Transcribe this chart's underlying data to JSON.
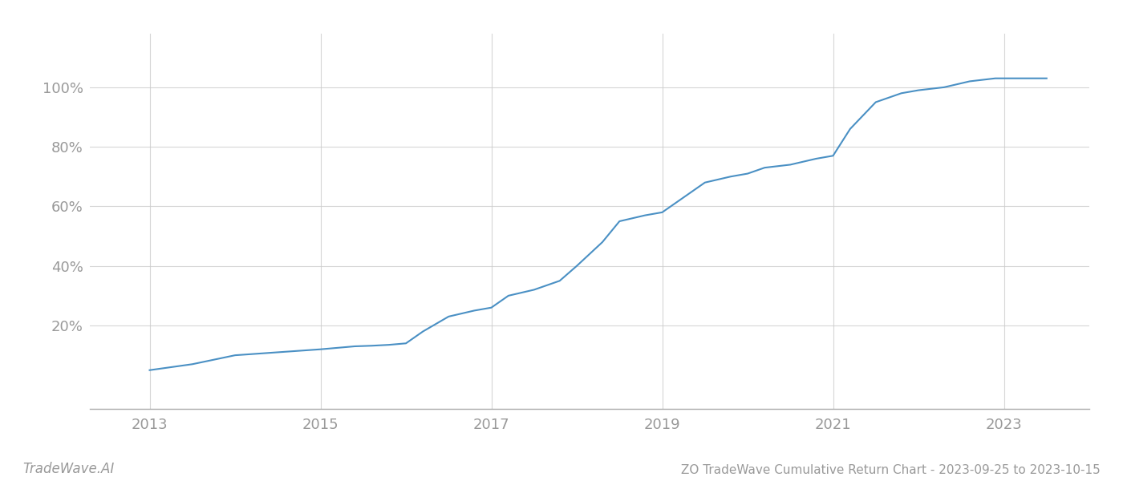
{
  "title": "ZO TradeWave Cumulative Return Chart - 2023-09-25 to 2023-10-15",
  "watermark": "TradeWave.AI",
  "line_color": "#4a90c4",
  "line_width": 1.5,
  "background_color": "#ffffff",
  "grid_color": "#cccccc",
  "x_years": [
    2013.0,
    2013.5,
    2014.0,
    2014.5,
    2015.0,
    2015.2,
    2015.4,
    2015.6,
    2015.8,
    2016.0,
    2016.2,
    2016.5,
    2016.8,
    2017.0,
    2017.2,
    2017.5,
    2017.8,
    2018.0,
    2018.3,
    2018.5,
    2018.8,
    2019.0,
    2019.2,
    2019.5,
    2019.8,
    2020.0,
    2020.2,
    2020.5,
    2020.8,
    2021.0,
    2021.2,
    2021.5,
    2021.8,
    2022.0,
    2022.3,
    2022.6,
    2022.9,
    2023.0,
    2023.5
  ],
  "y_values": [
    5,
    7,
    10,
    11,
    12,
    12.5,
    13,
    13.2,
    13.5,
    14,
    18,
    23,
    25,
    26,
    30,
    32,
    35,
    40,
    48,
    55,
    57,
    58,
    62,
    68,
    70,
    71,
    73,
    74,
    76,
    77,
    86,
    95,
    98,
    99,
    100,
    102,
    103,
    103,
    103
  ],
  "xlim": [
    2012.3,
    2024.0
  ],
  "ylim": [
    -8,
    118
  ],
  "xticks": [
    2013,
    2015,
    2017,
    2019,
    2021,
    2023
  ],
  "yticks": [
    20,
    40,
    60,
    80,
    100
  ],
  "ytick_labels": [
    "20%",
    "40%",
    "60%",
    "80%",
    "100%"
  ],
  "tick_label_color": "#999999",
  "title_fontsize": 11,
  "watermark_fontsize": 12,
  "axis_label_fontsize": 13
}
